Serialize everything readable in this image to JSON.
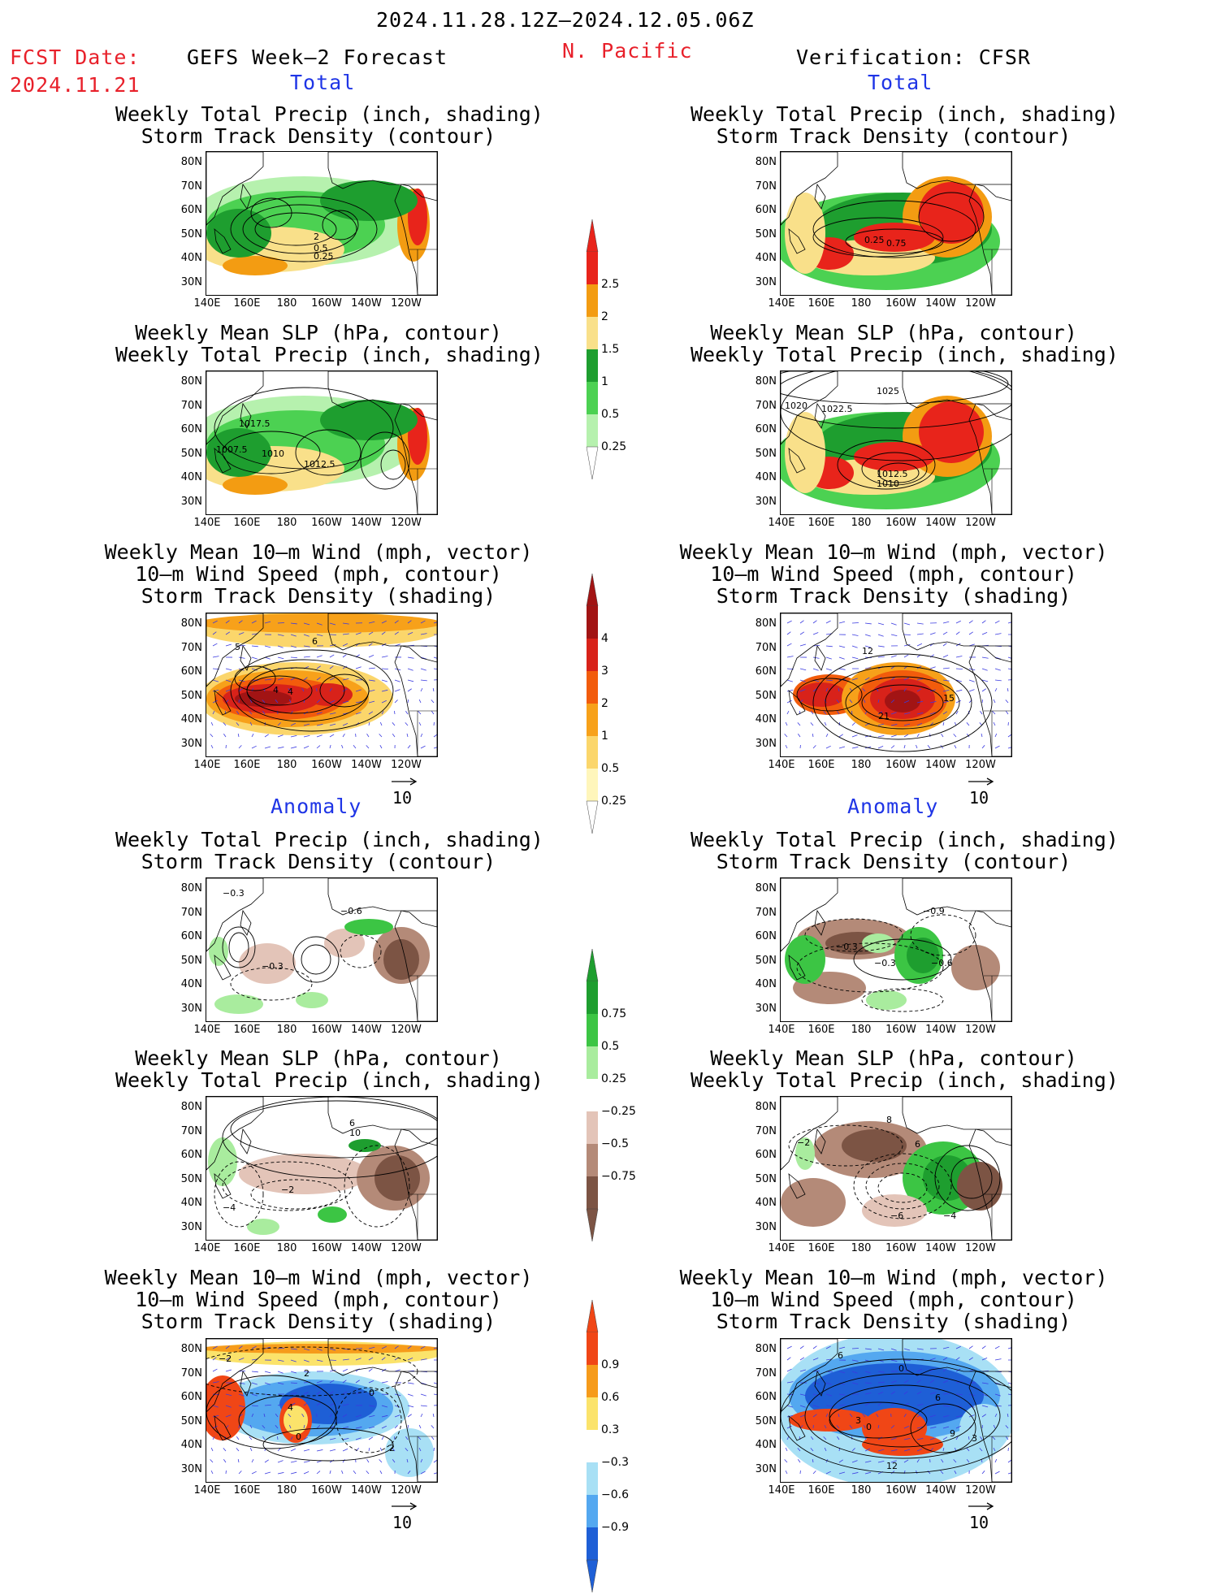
{
  "header": {
    "date_range": "2024.11.28.12Z–2024.12.05.06Z",
    "region": "N. Pacific",
    "fcst_label": "FCST Date:",
    "fcst_date": "2024.11.21",
    "left_model": "GEFS Week–2 Forecast",
    "right_model": "Verification: CFSR",
    "total_label": "Total",
    "anomaly_label": "Anomaly"
  },
  "titles": {
    "precip_storm": [
      "Weekly Total Precip (inch, shading)",
      "Storm Track Density (contour)"
    ],
    "slp_precip": [
      "Weekly Mean SLP (hPa, contour)",
      "Weekly Total Precip (inch, shading)"
    ],
    "wind_storm": [
      "Weekly Mean 10–m Wind (mph, vector)",
      "10–m Wind Speed (mph, contour)",
      "Storm Track Density (shading)"
    ]
  },
  "axes": {
    "lat": [
      "80N",
      "70N",
      "60N",
      "50N",
      "40N",
      "30N"
    ],
    "lon": [
      "140E",
      "160E",
      "180",
      "160W",
      "140W",
      "120W"
    ]
  },
  "vector_ref": "10",
  "colorbars": {
    "precip_total": {
      "labels": [
        "2.5",
        "2",
        "1.5",
        "1",
        "0.5",
        "0.25"
      ],
      "colors": [
        "#e8241b",
        "#f39c12",
        "#f9e08a",
        "#1e9e2f",
        "#4cd152",
        "#b6f1ae"
      ]
    },
    "storm_total": {
      "labels": [
        "4",
        "3",
        "2",
        "1",
        "0.5",
        "0.25"
      ],
      "colors": [
        "#a21414",
        "#d8221a",
        "#f25c0c",
        "#f7a11a",
        "#fbd66b",
        "#fff6bb"
      ]
    },
    "precip_anom": {
      "labels": [
        "0.75",
        "0.5",
        "0.25",
        "−0.25",
        "−0.5",
        "−0.75"
      ],
      "colors": [
        "#1e9e2f",
        "#3cc544",
        "#a9ec9e",
        "#ffffff",
        "#e3c4b8",
        "#b48a78",
        "#7c5444"
      ]
    },
    "storm_anom": {
      "labels": [
        "0.9",
        "0.6",
        "0.3",
        "−0.3",
        "−0.6",
        "−0.9"
      ],
      "colors": [
        "#f04616",
        "#f69b1b",
        "#fbe36b",
        "#ffffff",
        "#a8e0f5",
        "#54a8f0",
        "#1e5fd6"
      ]
    }
  },
  "contour_labels": {
    "p1": [
      "2",
      "0.5",
      "0.25"
    ],
    "p2": [
      "0.25",
      "0.75"
    ],
    "p3": [
      "1017.5",
      "1007.5",
      "1010",
      "1012.5"
    ],
    "p4": [
      "1025",
      "1020",
      "1022.5",
      "1012.5",
      "1010"
    ],
    "p5": [
      "6",
      "4",
      "4",
      "5"
    ],
    "p6": [
      "12",
      "15",
      "21"
    ],
    "p7": [
      "−0.3",
      "−0.6",
      "−0.3"
    ],
    "p8": [
      "−0.9",
      "−0.3",
      "−0.3",
      "−0.6"
    ],
    "p9": [
      "6",
      "10",
      "−2",
      "−4"
    ],
    "p10": [
      "8",
      "6",
      "−2",
      "−6",
      "−4"
    ],
    "p11": [
      "−2",
      "2",
      "4",
      "0",
      "0",
      "2"
    ],
    "p12": [
      "6",
      "0",
      "6",
      "3",
      "0",
      "9",
      "3",
      "12"
    ]
  }
}
